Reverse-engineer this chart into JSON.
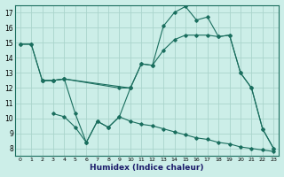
{
  "xlabel": "Humidex (Indice chaleur)",
  "background_color": "#cceee8",
  "grid_color": "#aad4cc",
  "line_color": "#1a6e5e",
  "xlim": [
    -0.5,
    23.5
  ],
  "ylim": [
    7.5,
    17.5
  ],
  "yticks": [
    8,
    9,
    10,
    11,
    12,
    13,
    14,
    15,
    16,
    17
  ],
  "xticks": [
    0,
    1,
    2,
    3,
    4,
    5,
    6,
    7,
    8,
    9,
    10,
    11,
    12,
    13,
    14,
    15,
    16,
    17,
    18,
    19,
    20,
    21,
    22,
    23
  ],
  "series": [
    {
      "x": [
        0,
        1,
        2,
        3,
        4,
        9,
        10
      ],
      "y": [
        14.9,
        14.9,
        12.5,
        12.5,
        12.6,
        12.0,
        12.0
      ]
    },
    {
      "x": [
        2,
        3,
        4,
        10,
        11,
        12,
        13,
        14,
        15,
        16,
        17,
        18,
        19,
        20,
        21,
        22,
        23
      ],
      "y": [
        12.5,
        12.5,
        12.6,
        12.0,
        13.6,
        13.5,
        14.5,
        15.2,
        15.5,
        15.5,
        15.5,
        15.4,
        15.5,
        13.0,
        12.0,
        9.3,
        8.0
      ]
    },
    {
      "x": [
        0,
        1,
        2,
        3,
        4,
        5,
        6,
        7,
        8,
        9,
        10,
        11,
        12,
        13,
        14,
        15,
        16,
        17,
        18,
        19,
        20,
        21,
        22,
        23
      ],
      "y": [
        14.9,
        14.9,
        12.5,
        12.5,
        12.6,
        10.3,
        8.4,
        9.8,
        9.4,
        10.1,
        12.0,
        13.6,
        13.5,
        16.1,
        17.0,
        17.4,
        16.5,
        16.7,
        15.4,
        15.5,
        13.0,
        12.0,
        9.3,
        8.0
      ]
    },
    {
      "x": [
        3,
        4,
        5,
        6,
        7,
        8,
        9,
        10,
        11,
        12,
        13,
        14,
        15,
        16,
        17,
        18,
        19,
        20,
        21,
        22,
        23
      ],
      "y": [
        10.3,
        10.1,
        9.4,
        8.4,
        9.8,
        9.4,
        10.1,
        9.8,
        9.6,
        9.5,
        9.3,
        9.1,
        8.9,
        8.7,
        8.6,
        8.4,
        8.3,
        8.1,
        8.0,
        7.9,
        7.8
      ]
    }
  ]
}
